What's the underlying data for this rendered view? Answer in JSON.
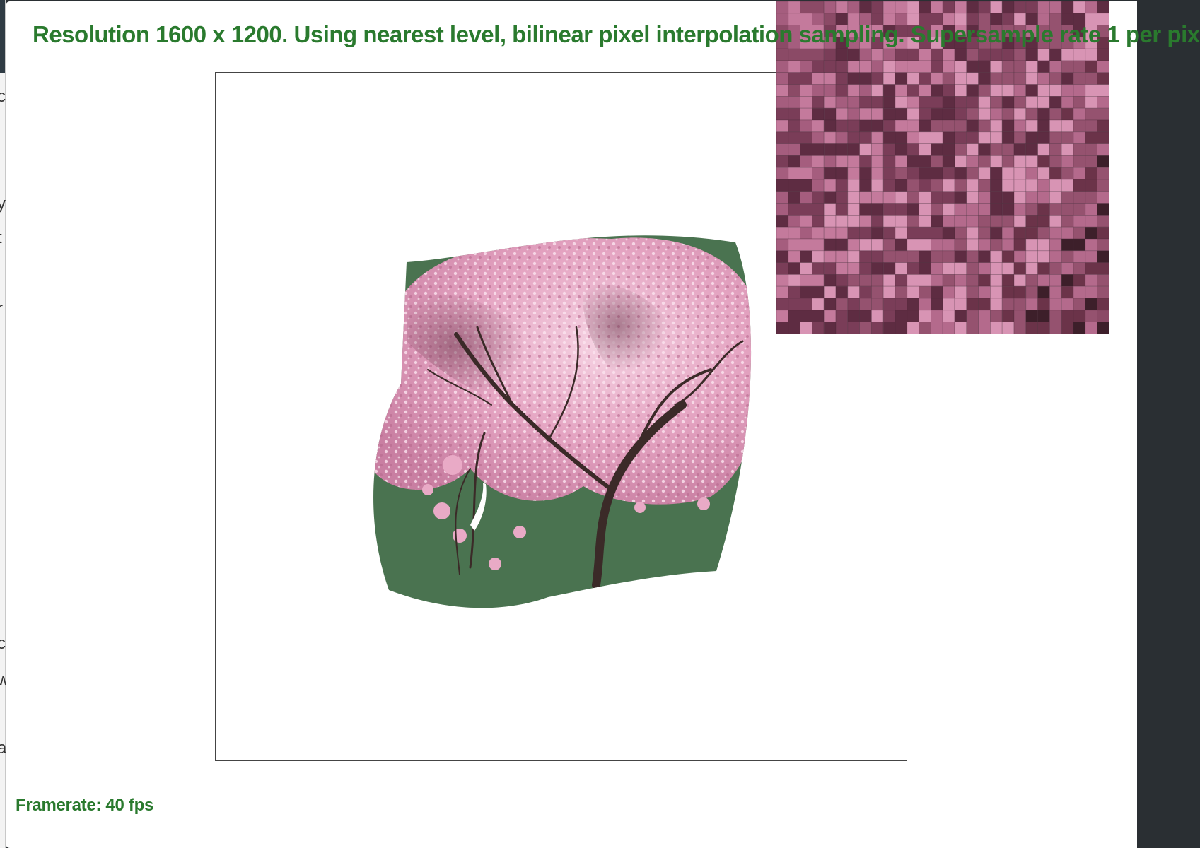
{
  "status": {
    "title": "Resolution 1600 x 1200. Using nearest level, bilinear pixel interpolation sampling. Supersample rate 1 per pix",
    "framerate": "Framerate: 40 fps"
  },
  "scene": {
    "texture_subject": "cherry blossom tree",
    "background_color": "#4a7350",
    "blossom_color": "#e8a9c6",
    "trunk_color": "#3b2a28"
  },
  "zoom_inset": {
    "palette": [
      "#8b4a66",
      "#a55d7e",
      "#c47a9c",
      "#7a3d58",
      "#5e2c42",
      "#d894b4",
      "#95526f",
      "#b46a8c",
      "#6b3349",
      "#3d1f2a"
    ]
  },
  "left_edge_glyphs": [
    "c",
    "y",
    "t",
    "r",
    "c",
    "w",
    "a"
  ],
  "colors": {
    "status_text": "#2a7a2e",
    "window_bg": "#ffffff",
    "frame_border": "#444444"
  }
}
